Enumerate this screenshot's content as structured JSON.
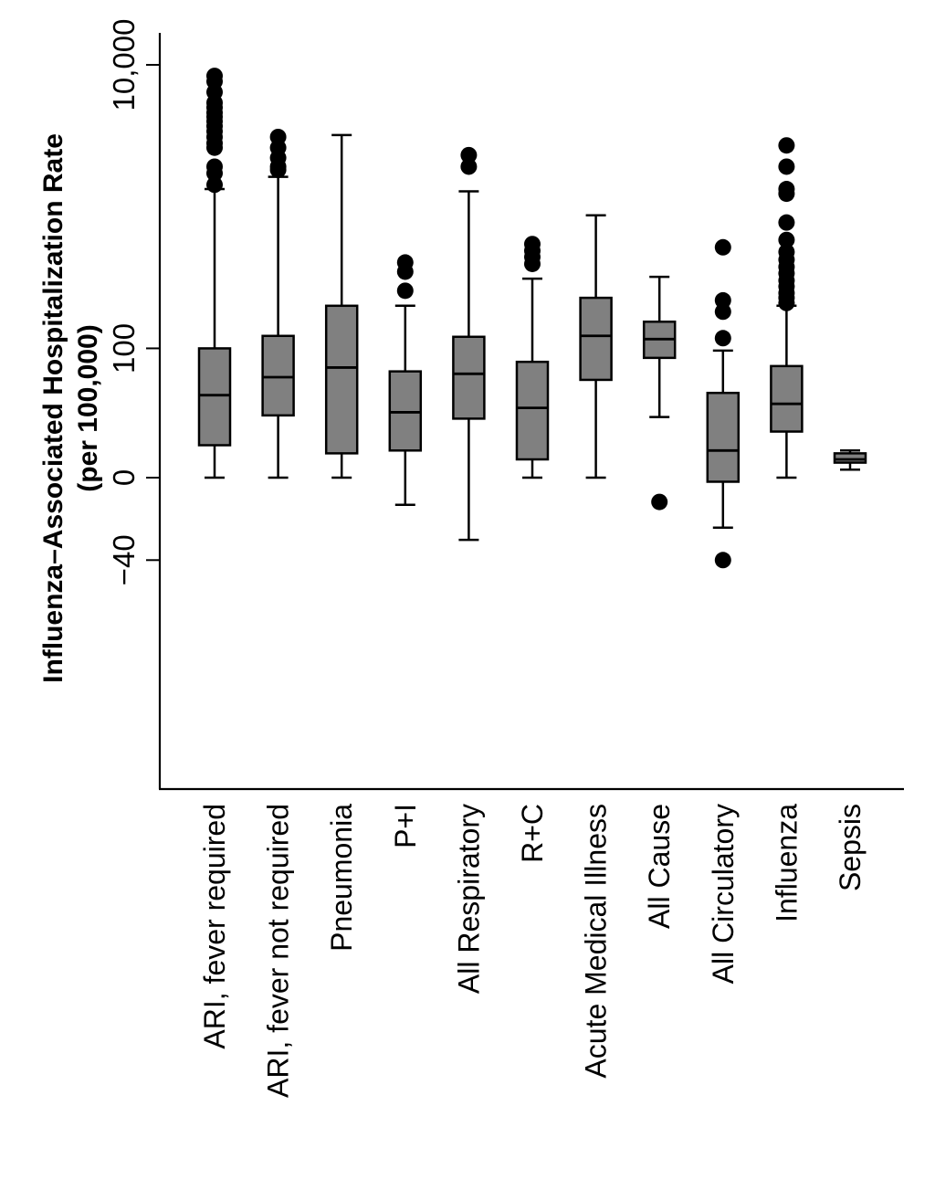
{
  "chart_data": {
    "type": "box",
    "ylabel_line1": "Influenza–Associated Hospitalization Rate",
    "ylabel_line2": "(per 100,000)",
    "y_scale": "symmetric-log",
    "y_ticks": [
      {
        "value": -40,
        "label": "−40"
      },
      {
        "value": 0,
        "label": "0"
      },
      {
        "value": 100,
        "label": "100"
      },
      {
        "value": 10000,
        "label": "10,000"
      }
    ],
    "ylim": [
      -55,
      15000
    ],
    "categories": [
      {
        "name": "ARI, fever required",
        "whisker_low": 0,
        "q1": 10,
        "median": 40,
        "q3": 100,
        "whisker_high": 1400,
        "outliers": [
          1500,
          1800,
          2000,
          2700,
          2900,
          3200,
          3500,
          3800,
          4100,
          4400,
          4700,
          5100,
          5500,
          6500,
          7700,
          8400
        ]
      },
      {
        "name": "ARI, fever not required",
        "whisker_low": 0,
        "q1": 25,
        "median": 58,
        "q3": 125,
        "whisker_high": 1700,
        "outliers": [
          1900,
          2000,
          2300,
          2700,
          3200
        ]
      },
      {
        "name": "Pneumonia",
        "whisker_low": 0,
        "q1": 7,
        "median": 70,
        "q3": 210,
        "whisker_high": 3300,
        "outliers": []
      },
      {
        "name": "P+I",
        "whisker_low": -8,
        "q1": 8,
        "median": 27,
        "q3": 65,
        "whisker_high": 210,
        "outliers": [
          270,
          370,
          430
        ]
      },
      {
        "name": "All Respiratory",
        "whisker_low": -25,
        "q1": 23,
        "median": 62,
        "q3": 123,
        "whisker_high": 1350,
        "outliers": [
          2000,
          2400
        ]
      },
      {
        "name": "R+C",
        "whisker_low": 0,
        "q1": 5,
        "median": 30,
        "q3": 78,
        "whisker_high": 330,
        "outliers": [
          420,
          470,
          520,
          580
        ]
      },
      {
        "name": "Acute Medical Illness",
        "whisker_low": 0,
        "q1": 55,
        "median": 125,
        "q3": 240,
        "whisker_high": 920,
        "outliers": []
      },
      {
        "name": "All Cause",
        "whisker_low": 24,
        "q1": 84,
        "median": 118,
        "q3": 160,
        "whisker_high": 340,
        "outliers": [
          -7
        ]
      },
      {
        "name": "All Circulatory",
        "whisker_low": -18,
        "q1": -1,
        "median": 8,
        "q3": 42,
        "whisker_high": 96,
        "outliers": [
          -40,
          120,
          190,
          230,
          550
        ]
      },
      {
        "name": "Influenza",
        "whisker_low": 0,
        "q1": 16,
        "median": 33,
        "q3": 72,
        "whisker_high": 210,
        "outliers": [
          220,
          240,
          260,
          290,
          320,
          360,
          400,
          450,
          510,
          620,
          820,
          1300,
          1400,
          2000,
          2800
        ]
      },
      {
        "name": "Sepsis",
        "whisker_low": 2,
        "q1": 4,
        "median": 5,
        "q3": 7,
        "whisker_high": 8,
        "outliers": []
      }
    ]
  }
}
